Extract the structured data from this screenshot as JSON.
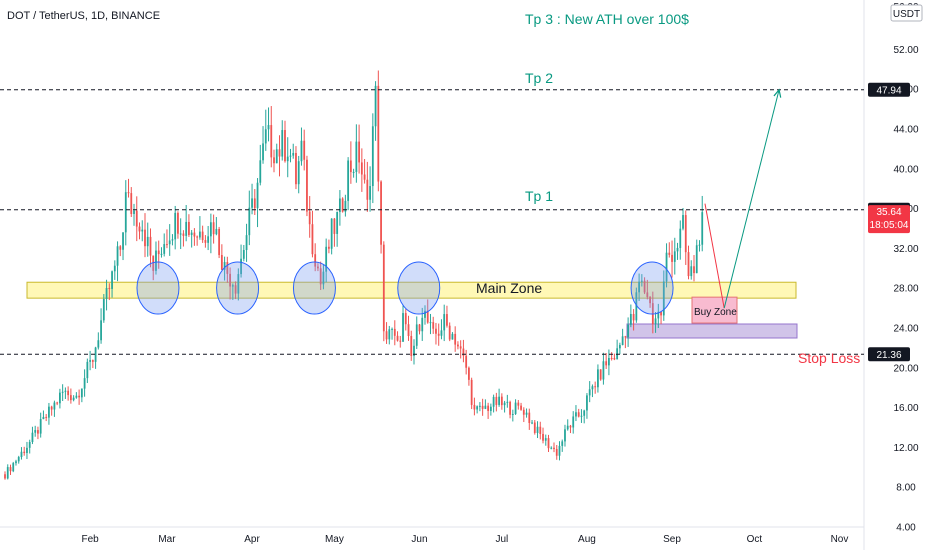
{
  "header": {
    "symbol": "DOT / TetherUS, 1D, BINANCE",
    "currency_badge": "USDT"
  },
  "chart_data": {
    "type": "candlestick",
    "x_axis": {
      "labels": [
        "Feb",
        "Mar",
        "Apr",
        "May",
        "Jun",
        "Jul",
        "Aug",
        "Sep",
        "Oct",
        "Nov"
      ]
    },
    "y_axis": {
      "ticks": [
        "52.00",
        "48.00",
        "44.00",
        "40.00",
        "36.00",
        "32.00",
        "28.00",
        "24.00",
        "20.00",
        "16.00",
        "12.00",
        "8.00",
        "4.00"
      ],
      "top_partial_label": "56.00",
      "ylim": [
        4,
        56
      ]
    },
    "price_tags": [
      {
        "value": 47.94,
        "label": "47.94",
        "style": "dark"
      },
      {
        "value": 35.89,
        "label": "35.89",
        "style": "dark"
      },
      {
        "value": 35.64,
        "label": "35.64",
        "sublabel": "18:05:04",
        "style": "red"
      },
      {
        "value": 21.36,
        "label": "21.36",
        "style": "dark"
      }
    ],
    "levels": [
      {
        "name": "Tp 2",
        "value": 47.94
      },
      {
        "name": "Tp 1",
        "value": 35.89
      },
      {
        "name": "Stop Loss",
        "value": 21.36
      }
    ],
    "zones": [
      {
        "name": "Main Zone",
        "low": 27.0,
        "high": 28.6
      },
      {
        "name": "Buy Zone",
        "low": 24.6,
        "high": 27.0
      }
    ],
    "annotations": [
      "Tp 3 : New ATH over 100$",
      "Tp 2",
      "Tp 1",
      "Main Zone",
      "Buy Zone",
      "Stop Loss"
    ],
    "price_path": [
      {
        "date": "Jan 1",
        "close": 9.3
      },
      {
        "date": "Jan 10",
        "close": 12.5
      },
      {
        "date": "Jan 17",
        "close": 15.5
      },
      {
        "date": "Jan 22",
        "close": 17.5
      },
      {
        "date": "Jan 27",
        "close": 17.2
      },
      {
        "date": "Feb 2",
        "close": 21.0
      },
      {
        "date": "Feb 7",
        "close": 27.0
      },
      {
        "date": "Feb 12",
        "close": 32.0
      },
      {
        "date": "Feb 14",
        "close": 37.0
      },
      {
        "date": "Feb 20",
        "close": 34.5
      },
      {
        "date": "Feb 24",
        "close": 30.0
      },
      {
        "date": "Feb 28",
        "close": 33.0
      },
      {
        "date": "Mar 5",
        "close": 35.0
      },
      {
        "date": "Mar 12",
        "close": 33.5
      },
      {
        "date": "Mar 18",
        "close": 34.5
      },
      {
        "date": "Mar 22",
        "close": 30.0
      },
      {
        "date": "Mar 26",
        "close": 28.5
      },
      {
        "date": "Mar 30",
        "close": 33.5
      },
      {
        "date": "Apr 3",
        "close": 38.5
      },
      {
        "date": "Apr 6",
        "close": 43.0
      },
      {
        "date": "Apr 10",
        "close": 42.0
      },
      {
        "date": "Apr 14",
        "close": 42.5
      },
      {
        "date": "Apr 17",
        "close": 39.0
      },
      {
        "date": "Apr 19",
        "close": 42.0
      },
      {
        "date": "Apr 22",
        "close": 34.0
      },
      {
        "date": "Apr 24",
        "close": 31.5
      },
      {
        "date": "Apr 26",
        "close": 28.5
      },
      {
        "date": "Apr 30",
        "close": 33.5
      },
      {
        "date": "May 3",
        "close": 35.5
      },
      {
        "date": "May 6",
        "close": 40.0
      },
      {
        "date": "May 10",
        "close": 41.5
      },
      {
        "date": "May 13",
        "close": 36.0
      },
      {
        "date": "May 15",
        "close": 44.0
      },
      {
        "date": "May 16",
        "close": 47.0
      },
      {
        "date": "May 17",
        "close": 40.0
      },
      {
        "date": "May 19",
        "close": 23.0
      },
      {
        "date": "May 21",
        "close": 24.0
      },
      {
        "date": "May 24",
        "close": 22.0
      },
      {
        "date": "May 26",
        "close": 25.0
      },
      {
        "date": "May 29",
        "close": 21.0
      },
      {
        "date": "Jun 2",
        "close": 26.0
      },
      {
        "date": "Jun 6",
        "close": 23.0
      },
      {
        "date": "Jun 10",
        "close": 24.5
      },
      {
        "date": "Jun 14",
        "close": 23.0
      },
      {
        "date": "Jun 18",
        "close": 20.0
      },
      {
        "date": "Jun 21",
        "close": 15.5
      },
      {
        "date": "Jun 25",
        "close": 16.0
      },
      {
        "date": "Jun 29",
        "close": 16.5
      },
      {
        "date": "Jul 4",
        "close": 16.0
      },
      {
        "date": "Jul 9",
        "close": 15.8
      },
      {
        "date": "Jul 14",
        "close": 13.5
      },
      {
        "date": "Jul 19",
        "close": 12.0
      },
      {
        "date": "Jul 21",
        "close": 11.5
      },
      {
        "date": "Jul 25",
        "close": 14.0
      },
      {
        "date": "Jul 30",
        "close": 15.5
      },
      {
        "date": "Aug 3",
        "close": 18.0
      },
      {
        "date": "Aug 8",
        "close": 20.5
      },
      {
        "date": "Aug 12",
        "close": 21.5
      },
      {
        "date": "Aug 15",
        "close": 24.0
      },
      {
        "date": "Aug 18",
        "close": 25.0
      },
      {
        "date": "Aug 20",
        "close": 28.5
      },
      {
        "date": "Aug 23",
        "close": 27.5
      },
      {
        "date": "Aug 25",
        "close": 25.0
      },
      {
        "date": "Aug 28",
        "close": 25.5
      },
      {
        "date": "Aug 30",
        "close": 31.0
      },
      {
        "date": "Sep 3",
        "close": 32.5
      },
      {
        "date": "Sep 5",
        "close": 34.0
      },
      {
        "date": "Sep 7",
        "close": 29.0
      },
      {
        "date": "Sep 9",
        "close": 30.0
      },
      {
        "date": "Sep 12",
        "close": 35.64
      }
    ],
    "projection": [
      {
        "date": "Sep 13",
        "value": 36.5
      },
      {
        "date": "Sep 20",
        "value": 26.0
      },
      {
        "date": "Oct 10",
        "value": 47.94
      }
    ]
  }
}
